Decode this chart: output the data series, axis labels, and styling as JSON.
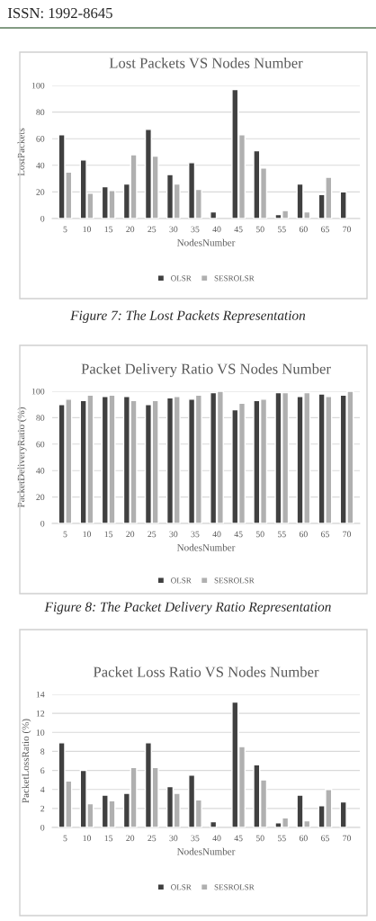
{
  "chart_data": [
    {
      "type": "bar",
      "title": "Lost Packets VS Nodes Number",
      "xlabel": "NodesNumber",
      "ylabel": "LostPackets",
      "categories": [
        "5",
        "10",
        "15",
        "20",
        "25",
        "30",
        "35",
        "40",
        "45",
        "50",
        "55",
        "60",
        "65",
        "70"
      ],
      "series": [
        {
          "name": "OLSR",
          "color": "#404040",
          "values": [
            63,
            44,
            24,
            26,
            67,
            33,
            42,
            5,
            97,
            51,
            3,
            26,
            18,
            20
          ]
        },
        {
          "name": "SESROLSR",
          "color": "#b0b0b0",
          "values": [
            35,
            19,
            21,
            48,
            47,
            26,
            22,
            null,
            63,
            38,
            6,
            5,
            31,
            null
          ]
        }
      ],
      "ylim": [
        0,
        100
      ],
      "yticks": [
        0,
        20,
        40,
        60,
        80,
        100
      ],
      "grid": "y",
      "legend": "bottom",
      "annotations": [
        "ISSN: 1992-8645",
        "Figure 7: The Lost Packets Representation"
      ]
    },
    {
      "type": "bar",
      "title": "Packet Delivery Ratio VS Nodes Number",
      "xlabel": "NodesNumber",
      "ylabel": "PacketDeliveryRatio (%)",
      "categories": [
        "5",
        "10",
        "15",
        "20",
        "25",
        "30",
        "35",
        "40",
        "45",
        "50",
        "55",
        "60",
        "65",
        "70"
      ],
      "series": [
        {
          "name": "OLSR",
          "color": "#404040",
          "values": [
            90,
            93,
            96,
            96,
            90,
            95,
            94,
            99,
            86,
            93,
            99,
            96,
            98,
            97
          ]
        },
        {
          "name": "SESROLSR",
          "color": "#b0b0b0",
          "values": [
            94,
            97,
            97,
            93,
            93,
            96,
            97,
            100,
            91,
            94,
            99,
            99,
            96,
            100
          ]
        }
      ],
      "ylim": [
        0,
        100
      ],
      "yticks": [
        0,
        20,
        40,
        60,
        80,
        100
      ],
      "grid": "y",
      "legend": "bottom",
      "annotations": [
        "Figure 8: The Packet Delivery Ratio Representation"
      ]
    },
    {
      "type": "bar",
      "title": "Packet Loss Ratio VS Nodes Number",
      "xlabel": "NodesNumber",
      "ylabel": "PacketLossRatio (%)",
      "categories": [
        "5",
        "10",
        "15",
        "20",
        "25",
        "30",
        "35",
        "40",
        "45",
        "50",
        "55",
        "60",
        "65",
        "70"
      ],
      "series": [
        {
          "name": "OLSR",
          "color": "#404040",
          "values": [
            8.9,
            6.0,
            3.4,
            3.6,
            8.9,
            4.3,
            5.5,
            0.6,
            13.2,
            6.6,
            0.5,
            3.4,
            2.3,
            2.7
          ]
        },
        {
          "name": "SESROLSR",
          "color": "#b0b0b0",
          "values": [
            4.9,
            2.5,
            2.8,
            6.3,
            6.3,
            3.6,
            2.9,
            null,
            8.5,
            5.0,
            1.0,
            0.7,
            4.0,
            null
          ]
        }
      ],
      "ylim": [
        0,
        14
      ],
      "yticks": [
        0,
        2,
        4,
        6,
        8,
        10,
        12,
        14
      ],
      "grid": "y",
      "legend": "bottom"
    }
  ]
}
